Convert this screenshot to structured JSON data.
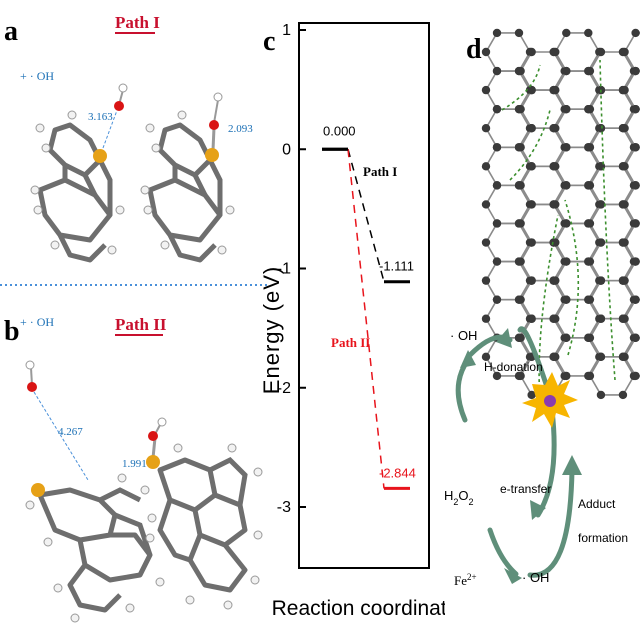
{
  "panel_a": {
    "letter": "a",
    "path_title": "Path I",
    "reagent": "+ · OH",
    "distances": [
      "3.163",
      "2.093"
    ]
  },
  "panel_b": {
    "letter": "b",
    "path_title": "Path II",
    "reagent": "+ · OH",
    "distances": [
      "4.267",
      "1.991"
    ]
  },
  "panel_c": {
    "letter": "c",
    "ylabel": "Energy (eV)",
    "xlabel": "Reaction coordinate",
    "path_i_label": "Path I",
    "path_ii_label": "Path II",
    "colors": {
      "path_i": "#000000",
      "path_ii": "#e8141c"
    }
  },
  "panel_d": {
    "letter": "d",
    "oh_top": "· OH",
    "h_donation": "H-donation",
    "h2o2": "H2O2",
    "e_transfer": "e-transfer",
    "adduct_formation": "Adduct formation",
    "fe": "Fe2+",
    "oh_bottom": "· OH"
  },
  "chart_data": {
    "type": "line",
    "title": "",
    "xlabel": "Reaction coordinate",
    "ylabel": "Energy (eV)",
    "ylim": [
      -3.5,
      1
    ],
    "yticks": [
      1,
      0,
      -1,
      -2,
      -3
    ],
    "series": [
      {
        "name": "Path I",
        "x": [
          1,
          2
        ],
        "values": [
          0.0,
          -1.111
        ],
        "labels": [
          "0.000",
          "-1.111"
        ],
        "color": "#000000"
      },
      {
        "name": "Path II",
        "x": [
          1,
          2
        ],
        "values": [
          0.0,
          -2.844
        ],
        "labels": [
          "0.000",
          "-2.844"
        ],
        "color": "#e8141c"
      }
    ]
  }
}
